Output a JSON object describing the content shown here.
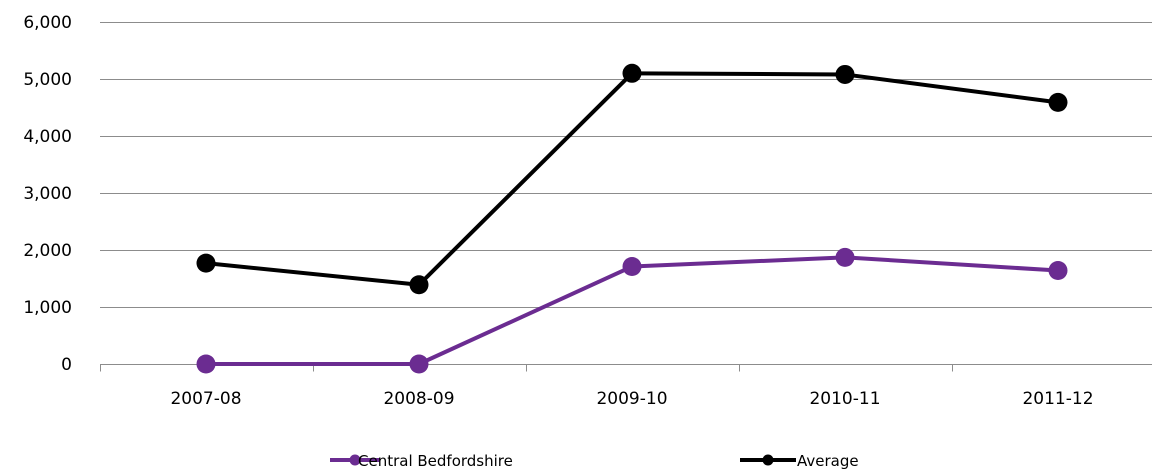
{
  "chart_data": {
    "type": "line",
    "title": "",
    "xlabel": "",
    "ylabel": "",
    "categories": [
      "2007-08",
      "2008-09",
      "2009-10",
      "2010-11",
      "2011-12"
    ],
    "ylim": [
      0,
      6000
    ],
    "yticks": [
      0,
      1000,
      2000,
      3000,
      4000,
      5000,
      6000
    ],
    "ytick_labels": [
      "0",
      "1,000",
      "2,000",
      "3,000",
      "4,000",
      "5,000",
      "6,000"
    ],
    "grid": "horizontal",
    "legend": "bottom",
    "series": [
      {
        "name": "Central Bedfordshire",
        "color": "#6b2c91",
        "values": [
          0,
          0,
          1710,
          1870,
          1640
        ]
      },
      {
        "name": "Average",
        "color": "#000000",
        "values": [
          1770,
          1390,
          5100,
          5080,
          4590
        ]
      }
    ]
  }
}
